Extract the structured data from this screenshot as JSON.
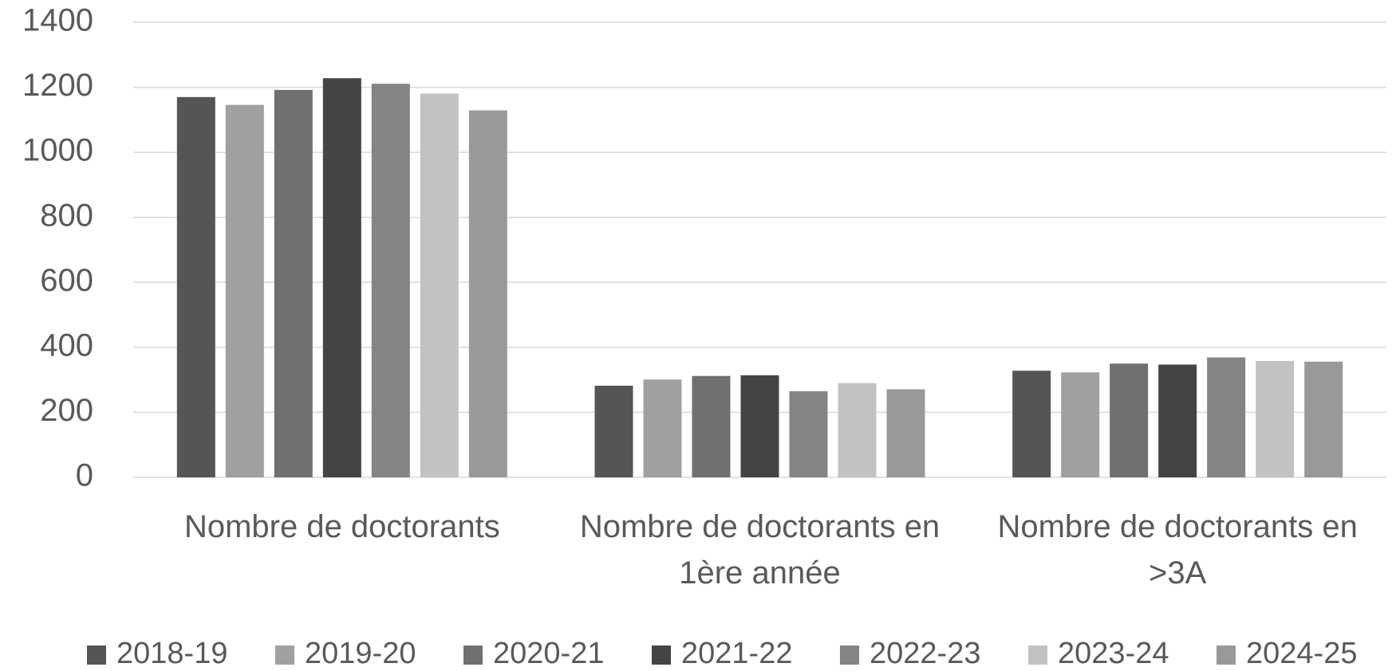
{
  "chart_data": {
    "type": "bar",
    "categories": [
      "Nombre de doctorants",
      "Nombre de doctorants en 1ère année",
      "Nombre de doctorants en >3A"
    ],
    "series": [
      {
        "name": "2018-19",
        "color": "#555555",
        "values": [
          1170,
          282,
          328
        ]
      },
      {
        "name": "2019-20",
        "color": "#a0a0a0",
        "values": [
          1146,
          301,
          323
        ]
      },
      {
        "name": "2020-21",
        "color": "#707070",
        "values": [
          1192,
          312,
          350
        ]
      },
      {
        "name": "2021-22",
        "color": "#444444",
        "values": [
          1228,
          314,
          347
        ]
      },
      {
        "name": "2022-23",
        "color": "#848484",
        "values": [
          1211,
          265,
          369
        ]
      },
      {
        "name": "2023-24",
        "color": "#c2c2c2",
        "values": [
          1181,
          290,
          358
        ]
      },
      {
        "name": "2024-25",
        "color": "#999999",
        "values": [
          1129,
          271,
          356
        ]
      }
    ],
    "ylim": [
      0,
      1400
    ],
    "yticks": [
      0,
      200,
      400,
      600,
      800,
      1000,
      1200,
      1400
    ],
    "grid": true,
    "legend": "bottom"
  }
}
